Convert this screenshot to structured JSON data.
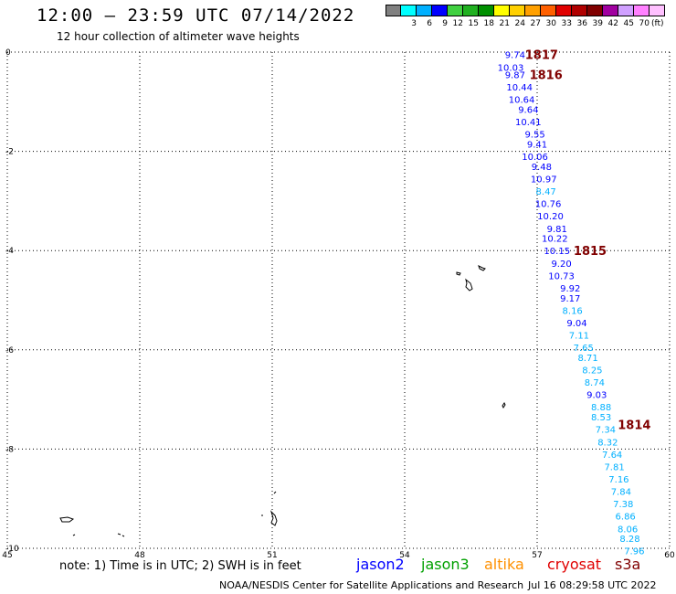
{
  "title": "12:00 – 23:59 UTC 07/14/2022",
  "subtitle": "12 hour collection of altimeter wave heights",
  "colorbar": {
    "colors": [
      "#808080",
      "#00ffff",
      "#00b0ff",
      "#0000ff",
      "#40d040",
      "#20b020",
      "#009000",
      "#ffff00",
      "#ffd000",
      "#ffa000",
      "#ff6000",
      "#e00000",
      "#b00000",
      "#800000",
      "#a000a0",
      "#d0a0ff",
      "#ff80ff",
      "#ffc0ff"
    ],
    "labels": [
      "3",
      "6",
      "9",
      "12",
      "15",
      "18",
      "21",
      "24",
      "27",
      "30",
      "33",
      "36",
      "39",
      "42",
      "45",
      "70"
    ],
    "unit": "(ft)"
  },
  "axes": {
    "x_ticks": [
      "45",
      "48",
      "51",
      "54",
      "57",
      "60"
    ],
    "y_ticks": [
      "0",
      "-2",
      "-4",
      "-6",
      "-8",
      "-10"
    ]
  },
  "chart_data": {
    "type": "scatter",
    "xlim": [
      45,
      60
    ],
    "ylim": [
      -10,
      0
    ],
    "grid": true,
    "points": [
      {
        "lon": 56.5,
        "lat": -0.05,
        "v": "9.74",
        "c": "#0000ff"
      },
      {
        "lon": 56.4,
        "lat": -0.3,
        "v": "10.03",
        "c": "#0000ff"
      },
      {
        "lon": 56.5,
        "lat": -0.45,
        "v": "9.87",
        "c": "#0000ff"
      },
      {
        "lon": 56.6,
        "lat": -0.7,
        "v": "10.44",
        "c": "#0000ff"
      },
      {
        "lon": 56.65,
        "lat": -0.95,
        "v": "10.64",
        "c": "#0000ff"
      },
      {
        "lon": 56.8,
        "lat": -1.15,
        "v": "9.64",
        "c": "#0000ff"
      },
      {
        "lon": 56.8,
        "lat": -1.4,
        "v": "10.41",
        "c": "#0000ff"
      },
      {
        "lon": 56.95,
        "lat": -1.65,
        "v": "9.55",
        "c": "#0000ff"
      },
      {
        "lon": 57.0,
        "lat": -1.85,
        "v": "9.41",
        "c": "#0000ff"
      },
      {
        "lon": 56.95,
        "lat": -2.1,
        "v": "10.06",
        "c": "#0000ff"
      },
      {
        "lon": 57.1,
        "lat": -2.3,
        "v": "9.48",
        "c": "#0000ff"
      },
      {
        "lon": 57.15,
        "lat": -2.55,
        "v": "10.97",
        "c": "#0000ff"
      },
      {
        "lon": 57.2,
        "lat": -2.8,
        "v": "8.47",
        "c": "#00b0ff"
      },
      {
        "lon": 57.25,
        "lat": -3.05,
        "v": "10.76",
        "c": "#0000ff"
      },
      {
        "lon": 57.3,
        "lat": -3.3,
        "v": "10.20",
        "c": "#0000ff"
      },
      {
        "lon": 57.45,
        "lat": -3.55,
        "v": "9.81",
        "c": "#0000ff"
      },
      {
        "lon": 57.4,
        "lat": -3.75,
        "v": "10.22",
        "c": "#0000ff"
      },
      {
        "lon": 57.45,
        "lat": -4.0,
        "v": "10.15",
        "c": "#0000ff"
      },
      {
        "lon": 57.55,
        "lat": -4.25,
        "v": "9.20",
        "c": "#0000ff"
      },
      {
        "lon": 57.55,
        "lat": -4.5,
        "v": "10.73",
        "c": "#0000ff"
      },
      {
        "lon": 57.75,
        "lat": -4.75,
        "v": "9.92",
        "c": "#0000ff"
      },
      {
        "lon": 57.75,
        "lat": -4.95,
        "v": "9.17",
        "c": "#0000ff"
      },
      {
        "lon": 57.8,
        "lat": -5.2,
        "v": "8.16",
        "c": "#00b0ff"
      },
      {
        "lon": 57.9,
        "lat": -5.45,
        "v": "9.04",
        "c": "#0000ff"
      },
      {
        "lon": 57.95,
        "lat": -5.7,
        "v": "7.11",
        "c": "#00b0ff"
      },
      {
        "lon": 58.05,
        "lat": -5.95,
        "v": "7.65",
        "c": "#00b0ff"
      },
      {
        "lon": 58.15,
        "lat": -6.15,
        "v": "8.71",
        "c": "#00b0ff"
      },
      {
        "lon": 58.25,
        "lat": -6.4,
        "v": "8.25",
        "c": "#00b0ff"
      },
      {
        "lon": 58.3,
        "lat": -6.65,
        "v": "8.74",
        "c": "#00b0ff"
      },
      {
        "lon": 58.35,
        "lat": -6.9,
        "v": "9.03",
        "c": "#0000ff"
      },
      {
        "lon": 58.45,
        "lat": -7.15,
        "v": "8.88",
        "c": "#00b0ff"
      },
      {
        "lon": 58.45,
        "lat": -7.35,
        "v": "8.53",
        "c": "#00b0ff"
      },
      {
        "lon": 58.55,
        "lat": -7.6,
        "v": "7.34",
        "c": "#00b0ff"
      },
      {
        "lon": 58.6,
        "lat": -7.85,
        "v": "8.32",
        "c": "#00b0ff"
      },
      {
        "lon": 58.7,
        "lat": -8.1,
        "v": "7.64",
        "c": "#00b0ff"
      },
      {
        "lon": 58.75,
        "lat": -8.35,
        "v": "7.81",
        "c": "#00b0ff"
      },
      {
        "lon": 58.85,
        "lat": -8.6,
        "v": "7.16",
        "c": "#00b0ff"
      },
      {
        "lon": 58.9,
        "lat": -8.85,
        "v": "7.84",
        "c": "#00b0ff"
      },
      {
        "lon": 58.95,
        "lat": -9.1,
        "v": "7.38",
        "c": "#00b0ff"
      },
      {
        "lon": 59.0,
        "lat": -9.35,
        "v": "6.86",
        "c": "#00b0ff"
      },
      {
        "lon": 59.05,
        "lat": -9.6,
        "v": "8.06",
        "c": "#00b0ff"
      },
      {
        "lon": 59.1,
        "lat": -9.8,
        "v": "8.28",
        "c": "#00b0ff"
      },
      {
        "lon": 59.2,
        "lat": -10.05,
        "v": "7.96",
        "c": "#00b0ff"
      }
    ],
    "time_labels": [
      {
        "lon": 57.1,
        "lat": -0.05,
        "t": "1817"
      },
      {
        "lon": 57.2,
        "lat": -0.45,
        "t": "1816"
      },
      {
        "lon": 58.2,
        "lat": -4.0,
        "t": "1815"
      },
      {
        "lon": 59.2,
        "lat": -7.5,
        "t": "1814"
      }
    ]
  },
  "note": "note:  1) Time is in UTC;  2) SWH is in feet",
  "legend": [
    {
      "label": "jason2",
      "color": "#0000ff"
    },
    {
      "label": "jason3",
      "color": "#00a000"
    },
    {
      "label": "altika",
      "color": "#ff9000"
    },
    {
      "label": "cryosat",
      "color": "#e00000"
    },
    {
      "label": "s3a",
      "color": "#800000"
    }
  ],
  "credit": "NOAA/NESDIS Center for Satellite Applications and Research",
  "timestamp": "Jul 16 08:29:58 UTC 2022"
}
